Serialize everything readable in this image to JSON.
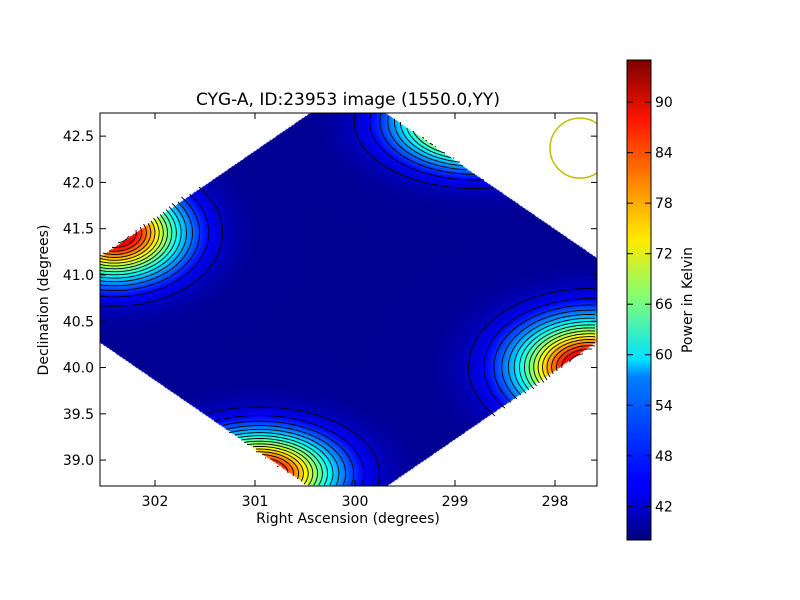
{
  "chart_data": {
    "type": "heatmap",
    "title": "CYG-A, ID:23953 image (1550.0,YY)",
    "xlabel": "Right Ascension (degrees)",
    "ylabel": "Declination (degrees)",
    "xlim": [
      302.55,
      297.58
    ],
    "ylim": [
      38.72,
      42.75
    ],
    "x_ticks": [
      "302",
      "301",
      "300",
      "299",
      "298"
    ],
    "x_tick_values": [
      302,
      301,
      300,
      299,
      298
    ],
    "y_ticks": [
      "39.0",
      "39.5",
      "40.0",
      "40.5",
      "41.0",
      "41.5",
      "42.0",
      "42.5"
    ],
    "y_tick_values": [
      39.0,
      39.5,
      40.0,
      40.5,
      41.0,
      41.5,
      42.0,
      42.5
    ],
    "colorbar": {
      "label": "Power in Kelvin",
      "range": [
        38,
        95
      ],
      "ticks": [
        "42",
        "48",
        "54",
        "60",
        "66",
        "72",
        "78",
        "84",
        "90"
      ],
      "tick_values": [
        42,
        48,
        54,
        60,
        66,
        72,
        78,
        84,
        90
      ],
      "colormap": "jet"
    },
    "sky_footprint": {
      "shape": "diamond",
      "center": [
        300.07,
        40.73
      ],
      "half_width_ra": 3.1,
      "half_height_dec": 2.3
    },
    "peaks": [
      {
        "ra": 302.4,
        "dec": 41.45,
        "value": 93,
        "spread_ra": 0.45,
        "spread_dec": 0.33
      },
      {
        "ra": 298.8,
        "dec": 42.65,
        "value": 93,
        "spread_ra": 0.5,
        "spread_dec": 0.3
      },
      {
        "ra": 297.65,
        "dec": 40.0,
        "value": 95,
        "spread_ra": 0.5,
        "spread_dec": 0.35
      },
      {
        "ra": 300.95,
        "dec": 38.85,
        "value": 92,
        "spread_ra": 0.5,
        "spread_dec": 0.3
      }
    ],
    "background_level": 39,
    "contour_levels": [
      42,
      45,
      48,
      51,
      54,
      57,
      60,
      63,
      66,
      69,
      72,
      75,
      78,
      81,
      84,
      87,
      90
    ],
    "beam_marker": {
      "ra": 297.75,
      "dec": 42.37,
      "radius_deg": 0.3,
      "color": "#bfbf00"
    }
  }
}
